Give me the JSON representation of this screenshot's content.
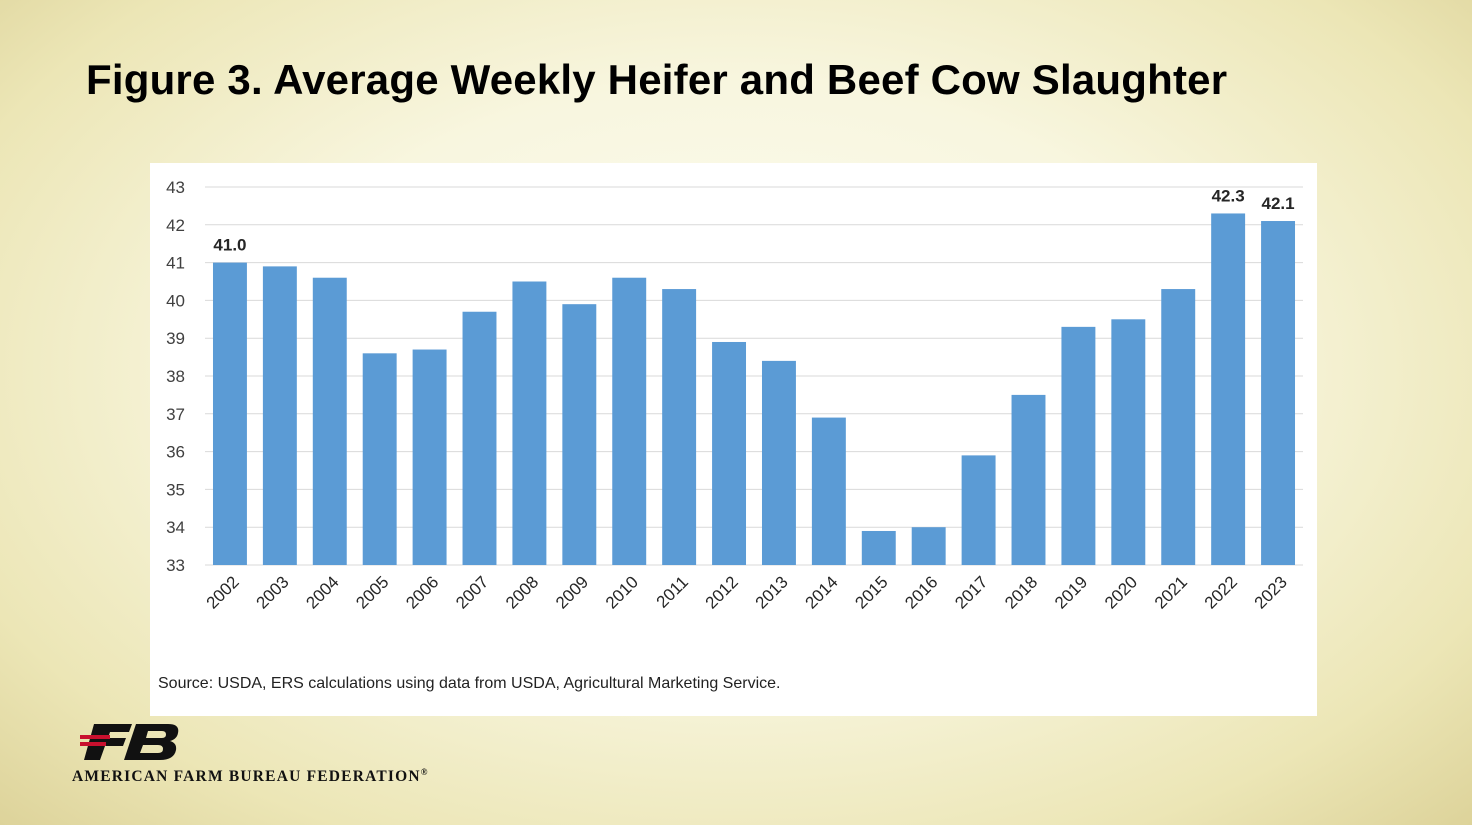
{
  "title": "Figure 3. Average Weekly Heifer and Beef Cow Slaughter",
  "source": "Source: USDA, ERS calculations using data from USDA, Agricultural Marketing Service.",
  "logo": {
    "name": "AMERICAN FARM BUREAU FEDERATION",
    "registered": "®",
    "mark_text": "FB"
  },
  "colors": {
    "bar": "#5b9bd5",
    "grid": "#d9d9d9",
    "text": "#404040"
  },
  "chart_data": {
    "type": "bar",
    "title": "",
    "xlabel": "",
    "ylabel": "",
    "ylim": [
      33,
      43
    ],
    "yticks": [
      33,
      34,
      35,
      36,
      37,
      38,
      39,
      40,
      41,
      42,
      43
    ],
    "grid": true,
    "legend": "none",
    "categories": [
      "2002",
      "2003",
      "2004",
      "2005",
      "2006",
      "2007",
      "2008",
      "2009",
      "2010",
      "2011",
      "2012",
      "2013",
      "2014",
      "2015",
      "2016",
      "2017",
      "2018",
      "2019",
      "2020",
      "2021",
      "2022",
      "2023"
    ],
    "values": [
      41.0,
      40.9,
      40.6,
      38.6,
      38.7,
      39.7,
      40.5,
      39.9,
      40.6,
      40.3,
      38.9,
      38.4,
      36.9,
      33.9,
      34.0,
      35.9,
      37.5,
      39.3,
      39.5,
      40.3,
      42.3,
      42.1
    ],
    "data_labels": [
      {
        "category": "2002",
        "text": "41.0"
      },
      {
        "category": "2022",
        "text": "42.3"
      },
      {
        "category": "2023",
        "text": "42.1"
      }
    ]
  }
}
